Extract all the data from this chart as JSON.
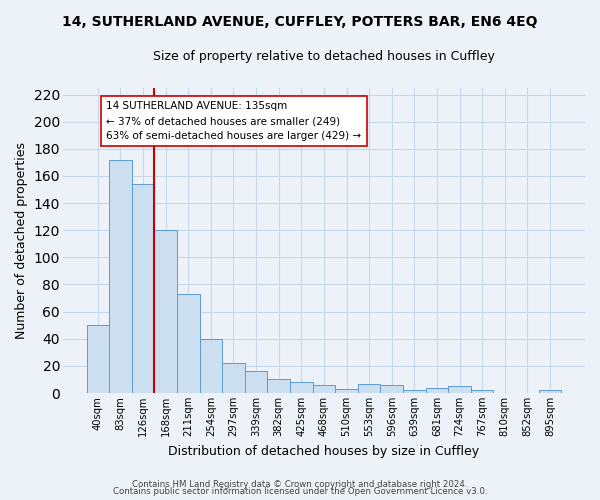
{
  "title1": "14, SUTHERLAND AVENUE, CUFFLEY, POTTERS BAR, EN6 4EQ",
  "title2": "Size of property relative to detached houses in Cuffley",
  "xlabel": "Distribution of detached houses by size in Cuffley",
  "ylabel": "Number of detached properties",
  "bar_labels": [
    "40sqm",
    "83sqm",
    "126sqm",
    "168sqm",
    "211sqm",
    "254sqm",
    "297sqm",
    "339sqm",
    "382sqm",
    "425sqm",
    "468sqm",
    "510sqm",
    "553sqm",
    "596sqm",
    "639sqm",
    "681sqm",
    "724sqm",
    "767sqm",
    "810sqm",
    "852sqm",
    "895sqm"
  ],
  "bar_values": [
    50,
    172,
    154,
    120,
    73,
    40,
    22,
    16,
    10,
    8,
    6,
    3,
    7,
    6,
    2,
    4,
    5,
    2,
    0,
    0,
    2
  ],
  "bar_color": "#ccdff0",
  "bar_edgecolor": "#5b9bd5",
  "vline_x": 2.5,
  "vline_color": "#cc0000",
  "annotation_text": "14 SUTHERLAND AVENUE: 135sqm\n← 37% of detached houses are smaller (249)\n63% of semi-detached houses are larger (429) →",
  "annotation_box_edgecolor": "#cc0000",
  "annotation_box_facecolor": "#ffffff",
  "ylim": [
    0,
    225
  ],
  "yticks": [
    0,
    20,
    40,
    60,
    80,
    100,
    120,
    140,
    160,
    180,
    200,
    220
  ],
  "footnote1": "Contains HM Land Registry data © Crown copyright and database right 2024.",
  "footnote2": "Contains public sector information licensed under the Open Government Licence v3.0.",
  "bg_color": "#edf2f8",
  "grid_color": "#c8d8eb",
  "title1_fontsize": 10,
  "title2_fontsize": 9
}
